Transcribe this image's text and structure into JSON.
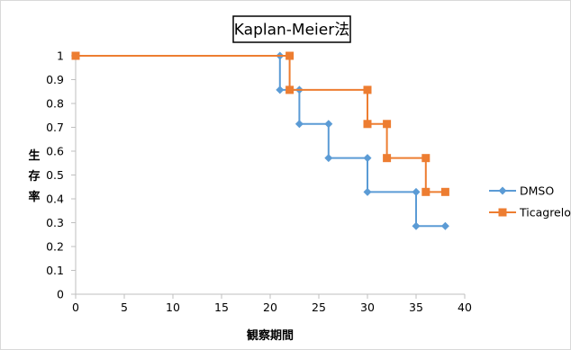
{
  "chart_data": {
    "type": "line",
    "step": true,
    "title": "Kaplan-Meier法",
    "xlabel": "観察期間",
    "ylabel": "生存率",
    "xlim": [
      0,
      40
    ],
    "ylim": [
      0,
      1
    ],
    "xticks": [
      "0",
      "5",
      "10",
      "15",
      "20",
      "25",
      "30",
      "35",
      "40"
    ],
    "yticks": [
      "0",
      "0.1",
      "0.2",
      "0.3",
      "0.4",
      "0.5",
      "0.6",
      "0.7",
      "0.8",
      "0.9",
      "1"
    ],
    "grid": false,
    "legend_position": "right",
    "series": [
      {
        "name": "DMSO",
        "color": "#5B9BD5",
        "marker": "diamond",
        "x": [
          0,
          21,
          21,
          23,
          23,
          26,
          26,
          30,
          30,
          35,
          35,
          38
        ],
        "y": [
          1,
          1,
          0.857,
          0.857,
          0.714,
          0.714,
          0.571,
          0.571,
          0.429,
          0.429,
          0.286,
          0.286
        ]
      },
      {
        "name": "Ticagrelor",
        "color": "#ED7D31",
        "marker": "square",
        "x": [
          0,
          22,
          22,
          30,
          30,
          32,
          32,
          36,
          36,
          38
        ],
        "y": [
          1,
          1,
          0.857,
          0.857,
          0.714,
          0.714,
          0.571,
          0.571,
          0.429,
          0.429
        ]
      }
    ]
  }
}
